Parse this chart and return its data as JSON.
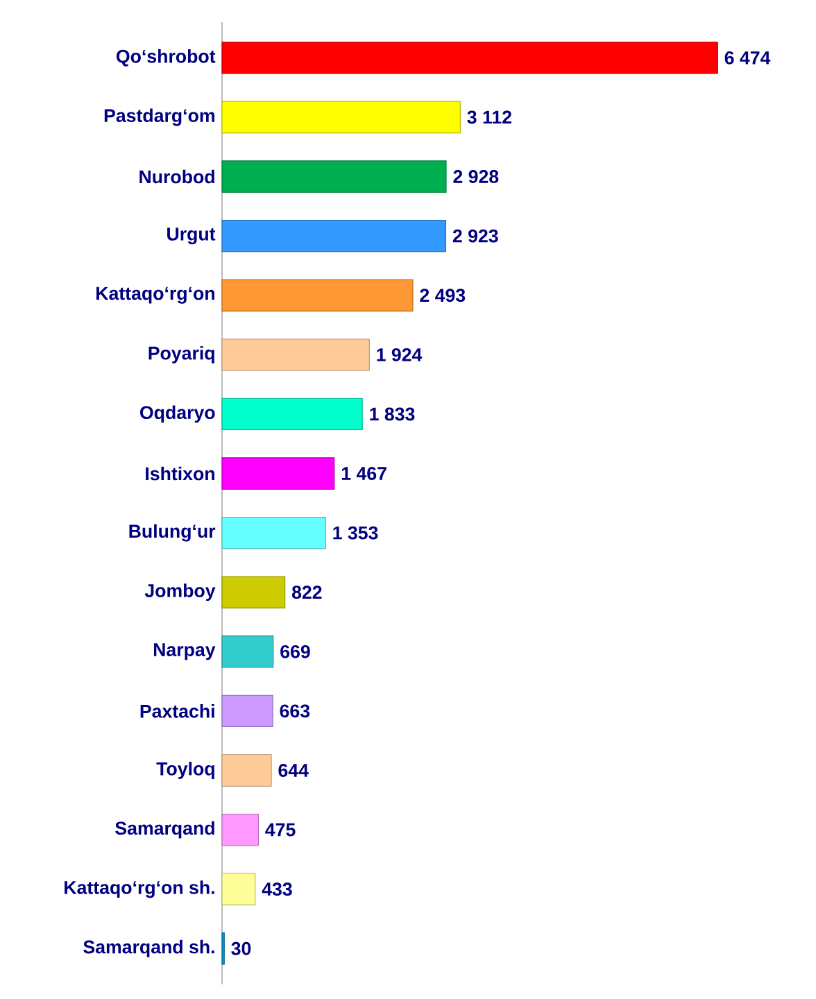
{
  "chart_data": {
    "type": "bar",
    "orientation": "horizontal",
    "categories": [
      "Qo‘shrobot",
      "Pastdarg‘om",
      "Nurobod",
      "Urgut",
      "Kattaqo‘rg‘on",
      "Poyariq",
      "Oqdaryo",
      "Ishtixon",
      "Bulung‘ur",
      "Jomboy",
      "Narpay",
      "Paxtachi",
      "Toyloq",
      "Samarqand",
      "Kattaqo‘rg‘on sh.",
      "Samarqand sh."
    ],
    "values": [
      6474,
      3112,
      2928,
      2923,
      2493,
      1924,
      1833,
      1467,
      1353,
      822,
      669,
      663,
      644,
      475,
      433,
      30
    ],
    "colors": [
      "#ff0000",
      "#ffff00",
      "#00b050",
      "#3399ff",
      "#ff9933",
      "#ffcc99",
      "#00ffcc",
      "#ff00ff",
      "#66ffff",
      "#cccc00",
      "#33cccc",
      "#cc99ff",
      "#ffcc99",
      "#ff99ff",
      "#ffff99",
      "#0099cc"
    ],
    "value_labels": [
      "6 474",
      "3 112",
      "2 928",
      "2 923",
      "2 493",
      "1 924",
      "1 833",
      "1 467",
      "1 353",
      "822",
      "669",
      "663",
      "644",
      "475",
      "433",
      "30"
    ]
  }
}
